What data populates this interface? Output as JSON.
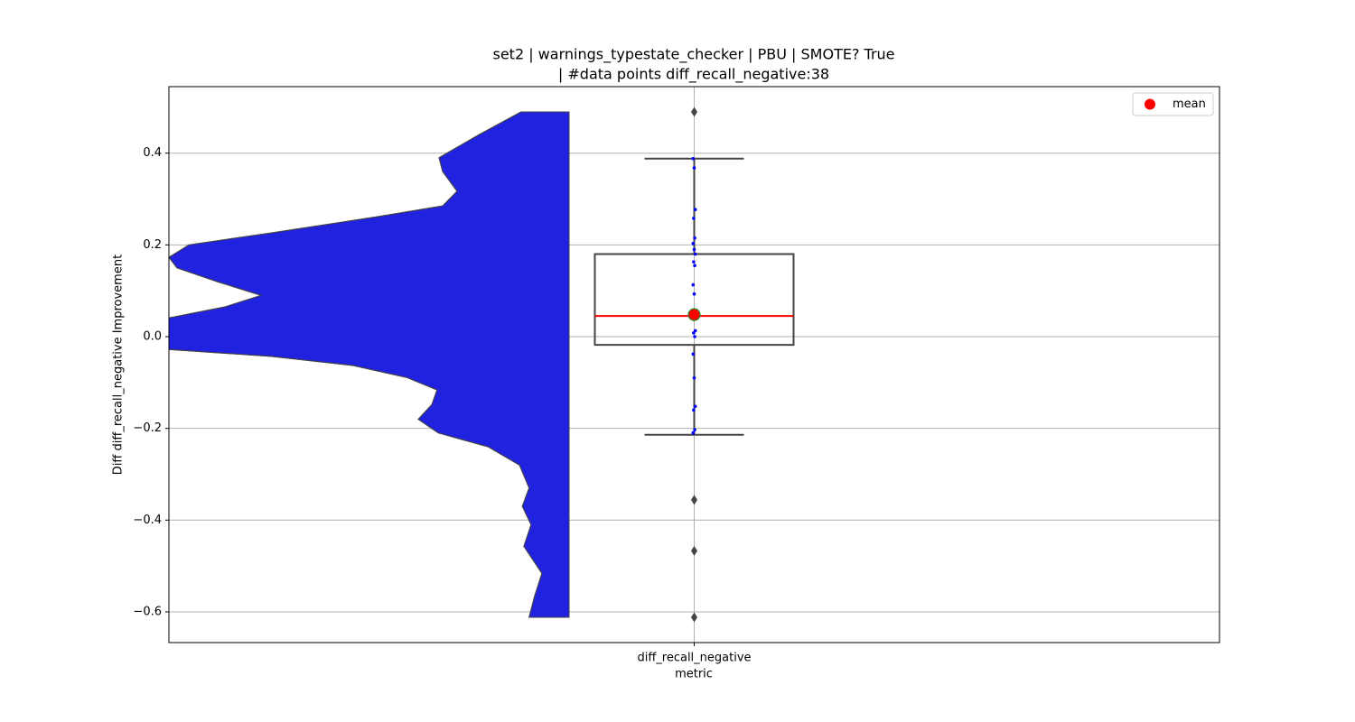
{
  "chart_data": {
    "type": "violin-box",
    "title": "set2 | warnings_typestate_checker | PBU | SMOTE? True",
    "subtitle": "| #data points diff_recall_negative:38",
    "xlabel": "metric",
    "ylabel": "Diff diff_recall_negative Improvement",
    "categories": [
      "diff_recall_negative"
    ],
    "ylim": [
      -0.667,
      0.545
    ],
    "yticks": [
      0.4,
      0.2,
      {
        "value": 0,
        "label": "0.0"
      },
      {
        "value": -0.2,
        "label": "−0.2"
      },
      {
        "value": -0.4,
        "label": "−0.4"
      },
      {
        "value": -0.6,
        "label": "−0.6"
      }
    ],
    "grid": true,
    "violin": {
      "color": "#2121e0",
      "y": [
        0.49,
        0.44,
        0.39,
        0.36,
        0.317,
        0.285,
        0.262,
        0.226,
        0.2,
        0.173,
        0.15,
        0.12,
        0.09,
        0.065,
        0.041,
        0.0,
        -0.028,
        -0.043,
        -0.063,
        -0.089,
        -0.116,
        -0.148,
        -0.18,
        -0.21,
        -0.24,
        -0.28,
        -0.33,
        -0.37,
        -0.41,
        -0.457,
        -0.516,
        -0.565,
        -0.612
      ],
      "density": [
        0.12,
        0.226,
        0.325,
        0.316,
        0.28,
        0.316,
        0.474,
        0.745,
        0.95,
        1.0,
        0.98,
        0.88,
        0.77,
        0.86,
        1.0,
        1.3,
        1.0,
        0.745,
        0.54,
        0.406,
        0.33,
        0.343,
        0.377,
        0.327,
        0.203,
        0.124,
        0.1,
        0.117,
        0.095,
        0.113,
        0.068,
        0.086,
        0.1
      ]
    },
    "box": {
      "q1": -0.018,
      "median": 0.045,
      "q3": 0.18,
      "whisker_low": -0.214,
      "whisker_high": 0.388,
      "median_color": "#ff0000",
      "outliers": [
        0.49,
        -0.356,
        -0.467,
        -0.612
      ]
    },
    "points": {
      "color": "#0000ff",
      "values": [
        0.388,
        0.368,
        0.277,
        0.258,
        0.215,
        0.203,
        0.19,
        0.18,
        0.163,
        0.155,
        0.113,
        0.093,
        0.013,
        0.008,
        0.0,
        -0.038,
        -0.09,
        -0.152,
        -0.16,
        -0.203,
        -0.21
      ]
    },
    "mean": {
      "name": "mean",
      "value": 0.048,
      "color": "#ff0000"
    },
    "legend": "upper right"
  }
}
